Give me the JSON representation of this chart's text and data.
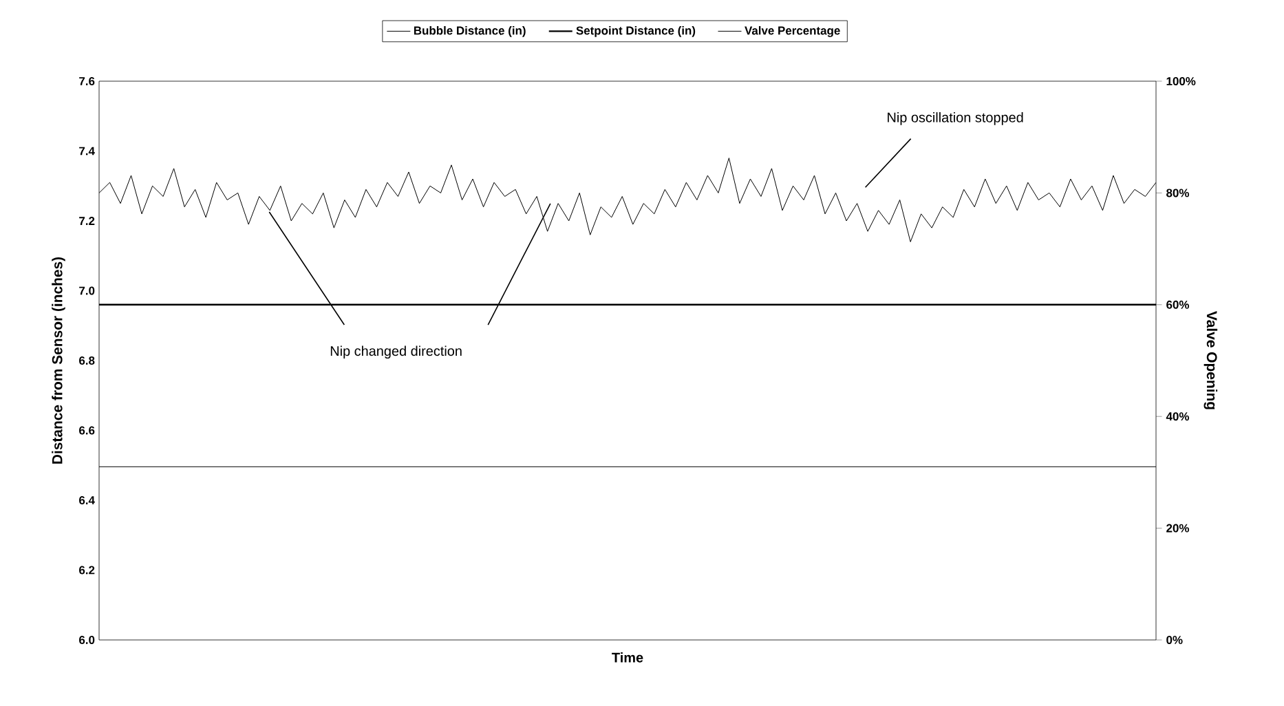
{
  "chart_data": {
    "type": "line",
    "xlabel": "Time",
    "ylabel": "Distance from Sensor (inches)",
    "y2label": "Valve Opening",
    "categories": [
      null,
      null,
      null,
      null,
      null,
      null,
      null,
      null,
      null,
      null,
      null,
      null,
      null,
      null,
      null,
      null,
      null,
      null,
      null,
      null,
      null,
      null,
      null,
      null,
      null,
      null,
      null,
      null,
      null,
      null,
      null,
      null,
      null,
      null,
      null,
      null,
      null,
      null,
      null,
      null,
      null,
      null,
      null,
      null,
      null,
      null,
      null,
      null,
      null,
      null,
      null,
      null,
      null,
      null,
      null,
      null,
      null,
      null,
      null,
      null,
      null,
      null,
      null,
      null,
      null,
      null,
      null,
      null,
      null,
      null,
      null,
      null,
      null,
      null,
      null,
      null,
      null,
      null,
      null,
      null,
      null,
      null,
      null,
      null,
      null,
      null,
      null,
      null,
      null,
      null,
      null,
      null,
      null,
      null,
      null,
      null,
      null,
      null,
      null,
      null
    ],
    "series": [
      {
        "name": "Bubble Distance (in)",
        "color": "#000000",
        "values": [
          7.28,
          7.31,
          7.25,
          7.33,
          7.22,
          7.3,
          7.27,
          7.35,
          7.24,
          7.29,
          7.21,
          7.31,
          7.26,
          7.28,
          7.19,
          7.27,
          7.23,
          7.3,
          7.2,
          7.25,
          7.22,
          7.28,
          7.18,
          7.26,
          7.21,
          7.29,
          7.24,
          7.31,
          7.27,
          7.34,
          7.25,
          7.3,
          7.28,
          7.36,
          7.26,
          7.32,
          7.24,
          7.31,
          7.27,
          7.29,
          7.22,
          7.27,
          7.17,
          7.25,
          7.2,
          7.28,
          7.16,
          7.24,
          7.21,
          7.27,
          7.19,
          7.25,
          7.22,
          7.29,
          7.24,
          7.31,
          7.26,
          7.33,
          7.28,
          7.38,
          7.25,
          7.32,
          7.27,
          7.35,
          7.23,
          7.3,
          7.26,
          7.33,
          7.22,
          7.28,
          7.2,
          7.25,
          7.17,
          7.23,
          7.19,
          7.26,
          7.14,
          7.22,
          7.18,
          7.24,
          7.21,
          7.29,
          7.24,
          7.32,
          7.25,
          7.3,
          7.23,
          7.31,
          7.26,
          7.28,
          7.24,
          7.32,
          7.26,
          7.3,
          7.23,
          7.33,
          7.25,
          7.29,
          7.27,
          7.31
        ]
      },
      {
        "name": "Setpoint Distance (in)",
        "color": "#000000",
        "values": [
          6.96,
          6.96,
          6.96,
          6.96,
          6.96,
          6.96,
          6.96,
          6.96,
          6.96,
          6.96,
          6.96,
          6.96,
          6.96,
          6.96,
          6.96,
          6.96,
          6.96,
          6.96,
          6.96,
          6.96,
          6.96,
          6.96,
          6.96,
          6.96,
          6.96,
          6.96,
          6.96,
          6.96,
          6.96,
          6.96,
          6.96,
          6.96,
          6.96,
          6.96,
          6.96,
          6.96,
          6.96,
          6.96,
          6.96,
          6.96,
          6.96,
          6.96,
          6.96,
          6.96,
          6.96,
          6.96,
          6.96,
          6.96,
          6.96,
          6.96,
          6.96,
          6.96,
          6.96,
          6.96,
          6.96,
          6.96,
          6.96,
          6.96,
          6.96,
          6.96,
          6.96,
          6.96,
          6.96,
          6.96,
          6.96,
          6.96,
          6.96,
          6.96,
          6.96,
          6.96,
          6.96,
          6.96,
          6.96,
          6.96,
          6.96,
          6.96,
          6.96,
          6.96,
          6.96,
          6.96,
          6.96,
          6.96,
          6.96,
          6.96,
          6.96,
          6.96,
          6.96,
          6.96,
          6.96,
          6.96,
          6.96,
          6.96,
          6.96,
          6.96,
          6.96,
          6.96,
          6.96,
          6.96,
          6.96,
          6.96
        ]
      },
      {
        "name": "Valve Percentage",
        "color": "#000000",
        "axis": "y2",
        "values": [
          31,
          31,
          31,
          31,
          31,
          31,
          31,
          31,
          31,
          31,
          31,
          31,
          31,
          31,
          31,
          31,
          31,
          31,
          31,
          31,
          31,
          31,
          31,
          31,
          31,
          31,
          31,
          31,
          31,
          31,
          31,
          31,
          31,
          31,
          31,
          31,
          31,
          31,
          31,
          31,
          31,
          31,
          31,
          31,
          31,
          31,
          31,
          31,
          31,
          31,
          31,
          31,
          31,
          31,
          31,
          31,
          31,
          31,
          31,
          31,
          31,
          31,
          31,
          31,
          31,
          31,
          31,
          31,
          31,
          31,
          31,
          31,
          31,
          31,
          31,
          31,
          31,
          31,
          31,
          31,
          31,
          31,
          31,
          31,
          31,
          31,
          31,
          31,
          31,
          31,
          31,
          31,
          31,
          31,
          31,
          31,
          31,
          31,
          31,
          31
        ]
      }
    ],
    "ylim": [
      6.0,
      7.6
    ],
    "yticks": [
      {
        "value": 6.0,
        "label": "6.0"
      },
      {
        "value": 6.2,
        "label": "6.2"
      },
      {
        "value": 6.4,
        "label": "6.4"
      },
      {
        "value": 6.6,
        "label": "6.6"
      },
      {
        "value": 6.8,
        "label": "6.8"
      },
      {
        "value": 7.0,
        "label": "7.0"
      },
      {
        "value": 7.2,
        "label": "7.2"
      },
      {
        "value": 7.4,
        "label": "7.4"
      },
      {
        "value": 7.6,
        "label": "7.6"
      }
    ],
    "y2lim": [
      0,
      100
    ],
    "y2ticks": [
      {
        "value": 0,
        "label": "0%"
      },
      {
        "value": 20,
        "label": "20%"
      },
      {
        "value": 40,
        "label": "40%"
      },
      {
        "value": 60,
        "label": "60%"
      },
      {
        "value": 80,
        "label": "80%"
      },
      {
        "value": 100,
        "label": "100%"
      }
    ],
    "legend": "top",
    "grid": false,
    "marker": "none",
    "line_style": "solid",
    "annotations": [
      "Nip oscillation stopped",
      "Nip changed direction"
    ]
  }
}
